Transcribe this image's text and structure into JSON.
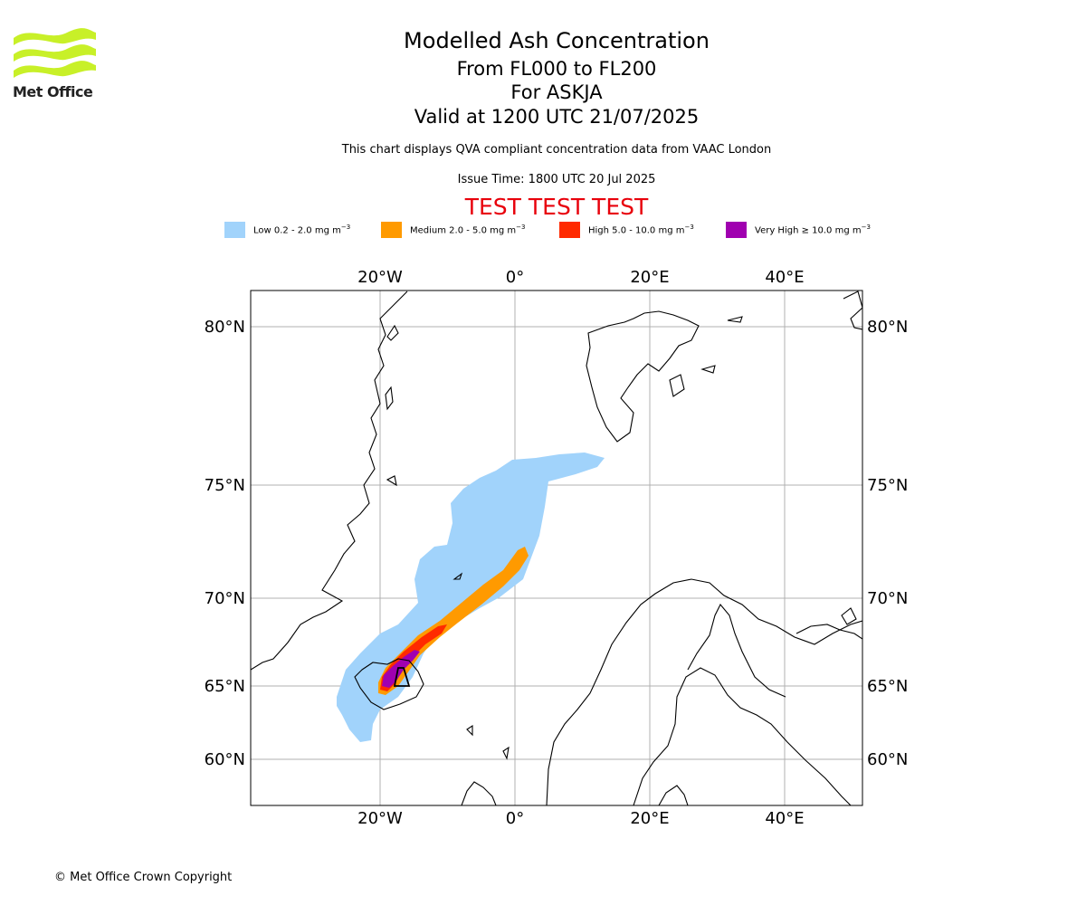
{
  "header": {
    "brand": "Met Office",
    "title": "Modelled Ash Concentration",
    "levels": "From FL000 to FL200",
    "volcano": "For ASKJA",
    "valid": "Valid at 1200 UTC 21/07/2025",
    "note": "This chart displays QVA compliant concentration data from VAAC London",
    "issue": "Issue Time: 1800 UTC 20 Jul 2025",
    "test_banner": "TEST TEST TEST"
  },
  "legend": [
    {
      "label": "Low 0.2 - 2.0 mg m",
      "color": "#a1d3fb"
    },
    {
      "label": "Medium 2.0 - 5.0 mg m",
      "color": "#ff9a00"
    },
    {
      "label": "High 5.0 - 10.0 mg m",
      "color": "#ff2a00"
    },
    {
      "label": "Very High ≥ 10.0 mg m",
      "color": "#a000b0"
    }
  ],
  "legend_unit_exponent": "−3",
  "axes": {
    "lon_ticks": [
      "20°W",
      "0°",
      "20°E",
      "40°E"
    ],
    "lat_ticks": [
      "80°N",
      "75°N",
      "70°N",
      "65°N",
      "60°N"
    ]
  },
  "footer": "© Met Office Crown Copyright",
  "colors": {
    "brand_green": "#c8f028",
    "test_red": "#e8000b"
  }
}
